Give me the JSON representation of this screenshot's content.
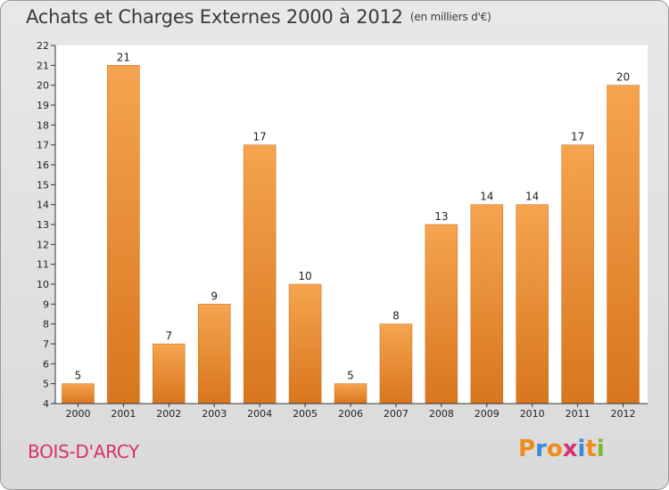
{
  "title": "Achats et Charges Externes 2000 à 2012",
  "subtitle": "(en milliers d'€)",
  "commune": "BOIS-D'ARCY",
  "logo": {
    "text": "Proxiti",
    "letters": [
      "P",
      "r",
      "o",
      "x",
      "i",
      "t",
      "i"
    ],
    "colors": [
      "#f08a1c",
      "#3a8ad8",
      "#f08a1c",
      "#d8306e",
      "#3a8ad8",
      "#f08a1c",
      "#7ab82e"
    ]
  },
  "colors": {
    "bar_top": "#f5a44f",
    "bar_bottom": "#d8761e",
    "accent": "#d8306e"
  },
  "chart_data": {
    "type": "bar",
    "title": "Achats et Charges Externes 2000 à 2012",
    "subtitle": "(en milliers d'€)",
    "categories": [
      "2000",
      "2001",
      "2002",
      "2003",
      "2004",
      "2005",
      "2006",
      "2007",
      "2008",
      "2009",
      "2010",
      "2011",
      "2012"
    ],
    "values": [
      5,
      21,
      7,
      9,
      17,
      10,
      5,
      8,
      13,
      14,
      14,
      17,
      20
    ],
    "ylim": [
      4,
      22
    ],
    "yticks": [
      4,
      5,
      6,
      7,
      8,
      9,
      10,
      11,
      12,
      13,
      14,
      15,
      16,
      17,
      18,
      19,
      20,
      21,
      22
    ],
    "grid": false,
    "xlabel": "",
    "ylabel": ""
  }
}
